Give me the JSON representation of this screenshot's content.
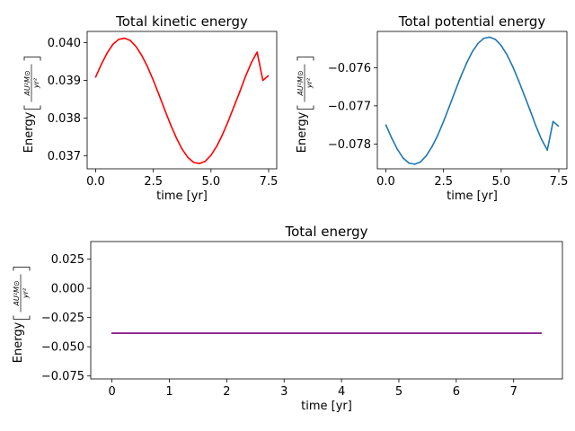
{
  "chart_data": [
    {
      "type": "line",
      "title": "Total kinetic energy",
      "xlabel": "time [yr]",
      "ylabel": "Energy",
      "ylabel_unit_num": "AU²M⊙",
      "ylabel_unit_den": "yr²",
      "xlim": [
        -0.37,
        7.85
      ],
      "ylim": [
        0.03665,
        0.0403
      ],
      "xticks": [
        0.0,
        2.5,
        5.0,
        7.5
      ],
      "xtick_labels": [
        "0.0",
        "2.5",
        "5.0",
        "7.5"
      ],
      "yticks": [
        0.037,
        0.038,
        0.039,
        0.04
      ],
      "ytick_labels": [
        "0.037",
        "0.038",
        "0.039",
        "0.040"
      ],
      "series": [
        {
          "color": "#ff0000",
          "x": [
            0.0,
            0.25,
            0.5,
            0.75,
            1.0,
            1.25,
            1.5,
            1.75,
            2.0,
            2.25,
            2.5,
            2.75,
            3.0,
            3.25,
            3.5,
            3.75,
            4.0,
            4.25,
            4.5,
            4.75,
            5.0,
            5.25,
            5.5,
            5.75,
            6.0,
            6.25,
            6.5,
            6.75,
            7.0,
            7.25,
            7.48
          ],
          "y": [
            0.03909,
            0.03943,
            0.03973,
            0.03996,
            0.04009,
            0.04012,
            0.04006,
            0.0399,
            0.03966,
            0.03936,
            0.039,
            0.03861,
            0.03821,
            0.03782,
            0.03747,
            0.03717,
            0.03695,
            0.03682,
            0.03679,
            0.03685,
            0.03701,
            0.03725,
            0.03756,
            0.03792,
            0.03831,
            0.0387,
            0.03911,
            0.03947,
            0.03975,
            0.039,
            0.03912
          ]
        }
      ]
    },
    {
      "type": "line",
      "title": "Total potential energy",
      "xlabel": "time [yr]",
      "ylabel": "Energy",
      "ylabel_unit_num": "AU²M⊙",
      "ylabel_unit_den": "yr²",
      "xlim": [
        -0.37,
        7.85
      ],
      "ylim": [
        -0.07865,
        -0.07505
      ],
      "xticks": [
        0.0,
        2.5,
        5.0,
        7.5
      ],
      "xtick_labels": [
        "0.0",
        "2.5",
        "5.0",
        "7.5"
      ],
      "yticks": [
        -0.078,
        -0.077,
        -0.076
      ],
      "ytick_labels": [
        "−0.078",
        "−0.077",
        "−0.076"
      ],
      "series": [
        {
          "color": "#1f77b4",
          "x": [
            0.0,
            0.25,
            0.5,
            0.75,
            1.0,
            1.25,
            1.5,
            1.75,
            2.0,
            2.25,
            2.5,
            2.75,
            3.0,
            3.25,
            3.5,
            3.75,
            4.0,
            4.25,
            4.5,
            4.75,
            5.0,
            5.25,
            5.5,
            5.75,
            6.0,
            6.25,
            6.5,
            6.75,
            7.0,
            7.25,
            7.48
          ],
          "y": [
            -0.0775,
            -0.07784,
            -0.07814,
            -0.07837,
            -0.0785,
            -0.07853,
            -0.07847,
            -0.07831,
            -0.07807,
            -0.07777,
            -0.07741,
            -0.07702,
            -0.07662,
            -0.07623,
            -0.07588,
            -0.07558,
            -0.07536,
            -0.07523,
            -0.0752,
            -0.07526,
            -0.07542,
            -0.07566,
            -0.07597,
            -0.07633,
            -0.07672,
            -0.07711,
            -0.07752,
            -0.07788,
            -0.07816,
            -0.07741,
            -0.07753
          ]
        }
      ]
    },
    {
      "type": "line",
      "title": "Total energy",
      "xlabel": "time [yr]",
      "ylabel": "Energy",
      "ylabel_unit_num": "AU²M⊙",
      "ylabel_unit_den": "yr²",
      "xlim": [
        -0.37,
        7.85
      ],
      "ylim": [
        -0.0775,
        0.04
      ],
      "xticks": [
        0,
        1,
        2,
        3,
        4,
        5,
        6,
        7
      ],
      "xtick_labels": [
        "0",
        "1",
        "2",
        "3",
        "4",
        "5",
        "6",
        "7"
      ],
      "yticks": [
        -0.075,
        -0.05,
        -0.025,
        0.0,
        0.025
      ],
      "ytick_labels": [
        "−0.075",
        "−0.050",
        "−0.025",
        "0.000",
        "0.025"
      ],
      "series": [
        {
          "color": "#800080",
          "x": [
            0.0,
            7.48
          ],
          "y": [
            -0.0384,
            -0.0384
          ]
        }
      ]
    }
  ]
}
